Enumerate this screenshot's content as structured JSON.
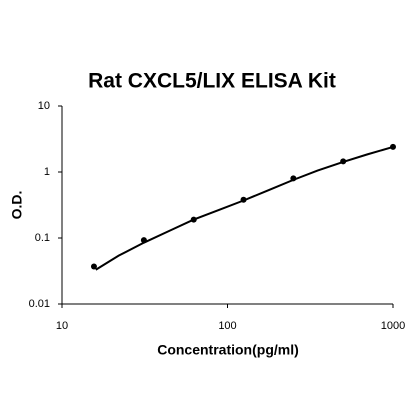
{
  "chart_data": {
    "type": "scatter",
    "title": "Rat CXCL5/LIX ELISA Kit",
    "xlabel": "Concentration(pg/ml)",
    "ylabel": "O.D.",
    "x": [
      15.6,
      31.25,
      62.5,
      125,
      250,
      500,
      1000
    ],
    "values": [
      0.037,
      0.093,
      0.19,
      0.38,
      0.8,
      1.45,
      2.4
    ],
    "fit": {
      "x": [
        16,
        22,
        31.25,
        45,
        62.5,
        90,
        125,
        180,
        250,
        350,
        500,
        700,
        1000
      ],
      "y": [
        0.033,
        0.054,
        0.085,
        0.13,
        0.19,
        0.27,
        0.37,
        0.54,
        0.76,
        1.05,
        1.42,
        1.85,
        2.4
      ]
    },
    "color": "#000000",
    "xscale": "log",
    "yscale": "log",
    "xlim": [
      10,
      1000
    ],
    "ylim": [
      0.01,
      10
    ],
    "xticks": [
      10,
      100,
      1000
    ],
    "yticks": [
      0.01,
      0.1,
      1,
      10
    ],
    "grid": false
  }
}
